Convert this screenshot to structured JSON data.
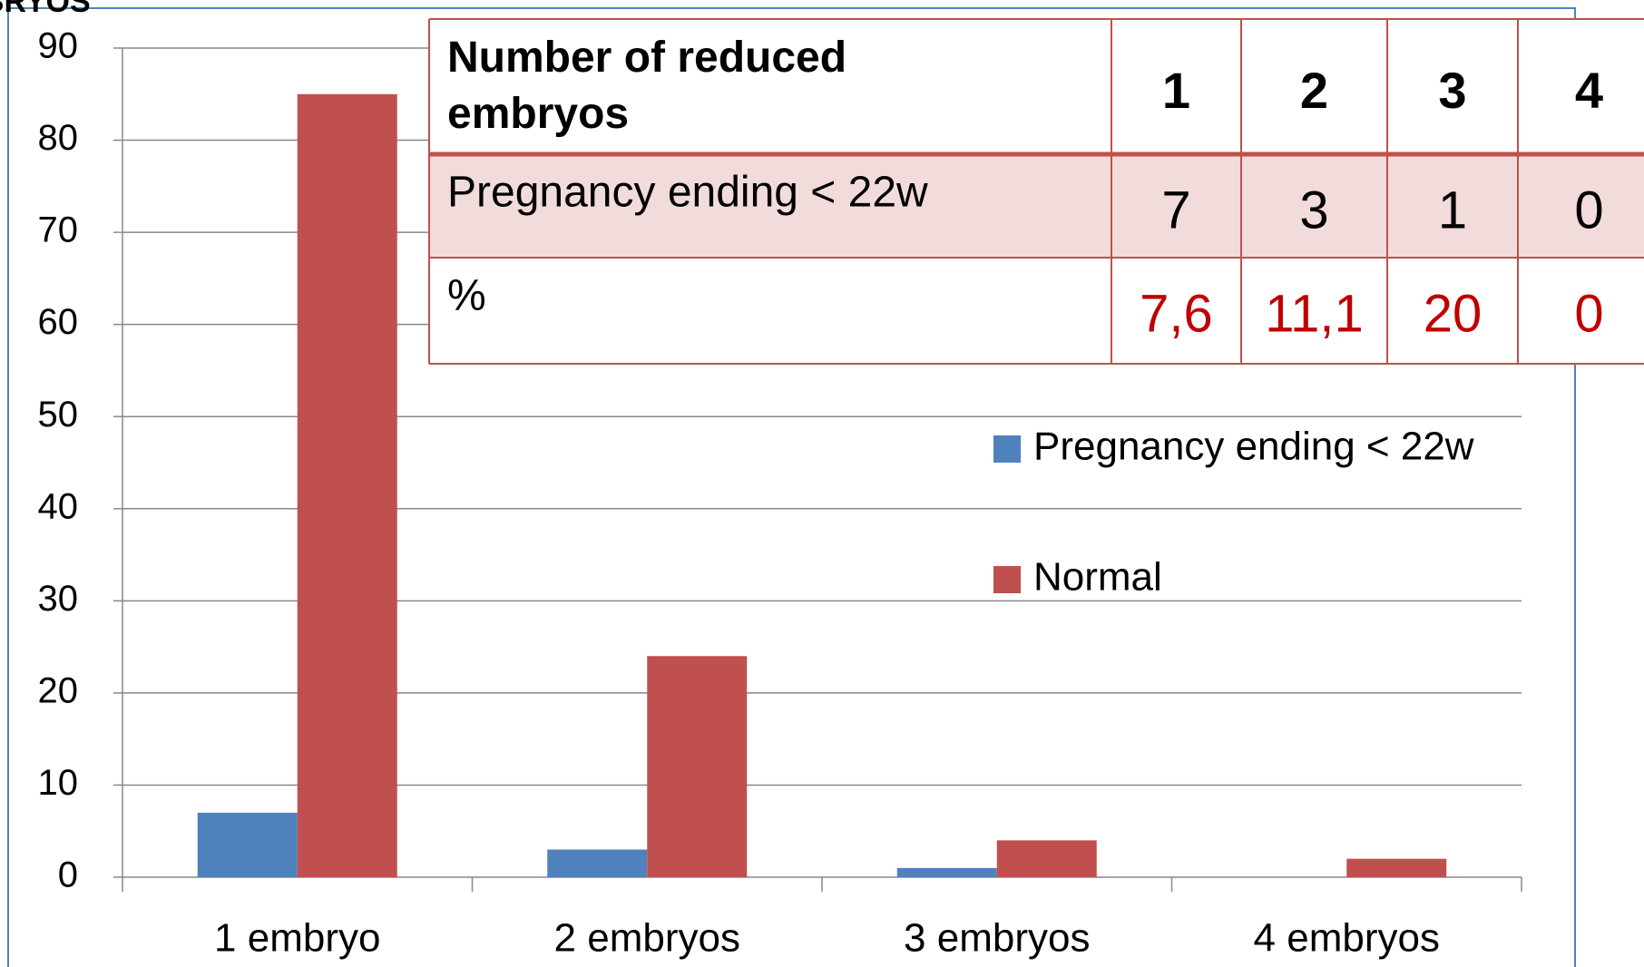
{
  "chart_data": {
    "type": "bar",
    "title": "BRYOS",
    "categories": [
      "1 embryo",
      "2 embryos",
      "3 embryos",
      "4 embryos"
    ],
    "series": [
      {
        "name": "Pregnancy ending < 22w",
        "color": "#4f81bd",
        "values": [
          7,
          3,
          1,
          0
        ]
      },
      {
        "name": "Normal",
        "color": "#c0504d",
        "values": [
          85,
          24,
          4,
          2
        ]
      }
    ],
    "ylim": [
      0,
      90
    ],
    "yticks": [
      0,
      10,
      20,
      30,
      40,
      50,
      60,
      70,
      80,
      90
    ],
    "grid": true,
    "table": {
      "header": [
        "Number of reduced embryos",
        "1",
        "2",
        "3",
        "4"
      ],
      "rows": [
        [
          "Pregnancy ending < 22w",
          "7",
          "3",
          "1",
          "0"
        ],
        [
          "%",
          "7,6",
          "11,1",
          "20",
          "0"
        ]
      ]
    }
  }
}
